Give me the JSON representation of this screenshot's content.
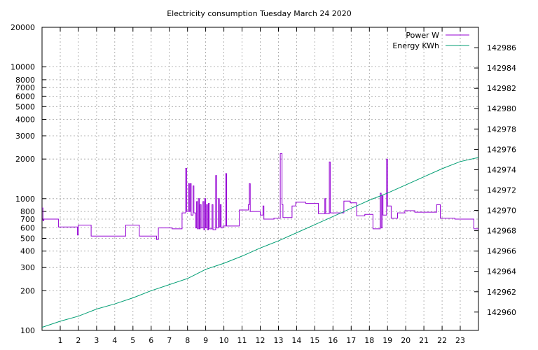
{
  "chart_data": {
    "type": "line",
    "title": "Electricity consumption Tuesday March 24 2020",
    "xlabel": "",
    "ylabel": "",
    "y2label": "",
    "x_range": [
      0,
      24
    ],
    "x_ticks": [
      1,
      2,
      3,
      4,
      5,
      6,
      7,
      8,
      9,
      10,
      11,
      12,
      13,
      14,
      15,
      16,
      17,
      18,
      19,
      20,
      21,
      22,
      23
    ],
    "y_scale": "log",
    "y_range": [
      100,
      20000
    ],
    "y_ticks": [
      100,
      200,
      300,
      400,
      500,
      600,
      700,
      800,
      1000,
      2000,
      3000,
      4000,
      5000,
      6000,
      7000,
      8000,
      10000,
      20000
    ],
    "y2_range": [
      142958.2,
      142988.0
    ],
    "y2_ticks": [
      142960,
      142962,
      142964,
      142966,
      142968,
      142970,
      142972,
      142974,
      142976,
      142978,
      142980,
      142982,
      142984,
      142986
    ],
    "grid": true,
    "legend_position": "top-right",
    "series": [
      {
        "name": "Power W",
        "axis": "left",
        "color": "#9400d3",
        "points": [
          [
            0.0,
            850
          ],
          [
            0.05,
            850
          ],
          [
            0.05,
            680
          ],
          [
            0.1,
            680
          ],
          [
            0.1,
            700
          ],
          [
            0.9,
            700
          ],
          [
            0.9,
            610
          ],
          [
            1.95,
            610
          ],
          [
            1.95,
            530
          ],
          [
            2.0,
            530
          ],
          [
            2.0,
            630
          ],
          [
            2.7,
            630
          ],
          [
            2.7,
            520
          ],
          [
            4.6,
            520
          ],
          [
            4.6,
            630
          ],
          [
            5.35,
            630
          ],
          [
            5.35,
            520
          ],
          [
            6.3,
            520
          ],
          [
            6.3,
            490
          ],
          [
            6.4,
            490
          ],
          [
            6.4,
            600
          ],
          [
            7.15,
            600
          ],
          [
            7.15,
            590
          ],
          [
            7.7,
            590
          ],
          [
            7.7,
            780
          ],
          [
            7.9,
            780
          ],
          [
            7.9,
            1700
          ],
          [
            7.95,
            1700
          ],
          [
            7.95,
            800
          ],
          [
            8.05,
            800
          ],
          [
            8.05,
            1300
          ],
          [
            8.1,
            1300
          ],
          [
            8.1,
            800
          ],
          [
            8.15,
            800
          ],
          [
            8.15,
            1300
          ],
          [
            8.2,
            1300
          ],
          [
            8.2,
            750
          ],
          [
            8.3,
            750
          ],
          [
            8.3,
            1250
          ],
          [
            8.35,
            1250
          ],
          [
            8.35,
            780
          ],
          [
            8.45,
            780
          ],
          [
            8.45,
            600
          ],
          [
            8.5,
            600
          ],
          [
            8.5,
            950
          ],
          [
            8.55,
            950
          ],
          [
            8.55,
            590
          ],
          [
            8.6,
            590
          ],
          [
            8.6,
            1000
          ],
          [
            8.65,
            1000
          ],
          [
            8.65,
            590
          ],
          [
            8.7,
            590
          ],
          [
            8.7,
            900
          ],
          [
            8.75,
            900
          ],
          [
            8.75,
            600
          ],
          [
            8.85,
            600
          ],
          [
            8.85,
            950
          ],
          [
            8.9,
            950
          ],
          [
            8.9,
            580
          ],
          [
            8.95,
            580
          ],
          [
            8.95,
            1000
          ],
          [
            9.0,
            1000
          ],
          [
            9.0,
            600
          ],
          [
            9.05,
            600
          ],
          [
            9.05,
            900
          ],
          [
            9.1,
            900
          ],
          [
            9.1,
            580
          ],
          [
            9.15,
            580
          ],
          [
            9.15,
            920
          ],
          [
            9.2,
            920
          ],
          [
            9.2,
            590
          ],
          [
            9.35,
            590
          ],
          [
            9.35,
            900
          ],
          [
            9.4,
            900
          ],
          [
            9.4,
            580
          ],
          [
            9.55,
            580
          ],
          [
            9.55,
            1500
          ],
          [
            9.6,
            1500
          ],
          [
            9.6,
            600
          ],
          [
            9.7,
            600
          ],
          [
            9.7,
            1000
          ],
          [
            9.75,
            1000
          ],
          [
            9.75,
            610
          ],
          [
            9.8,
            610
          ],
          [
            9.8,
            900
          ],
          [
            9.85,
            900
          ],
          [
            9.85,
            600
          ],
          [
            9.95,
            600
          ],
          [
            9.95,
            620
          ],
          [
            10.1,
            620
          ],
          [
            10.1,
            1550
          ],
          [
            10.15,
            1550
          ],
          [
            10.15,
            620
          ],
          [
            10.85,
            620
          ],
          [
            10.85,
            820
          ],
          [
            11.35,
            820
          ],
          [
            11.35,
            900
          ],
          [
            11.4,
            900
          ],
          [
            11.4,
            1300
          ],
          [
            11.45,
            1300
          ],
          [
            11.45,
            800
          ],
          [
            12.0,
            800
          ],
          [
            12.0,
            750
          ],
          [
            12.15,
            750
          ],
          [
            12.15,
            880
          ],
          [
            12.2,
            880
          ],
          [
            12.2,
            700
          ],
          [
            12.75,
            700
          ],
          [
            12.75,
            710
          ],
          [
            13.1,
            710
          ],
          [
            13.1,
            2200
          ],
          [
            13.2,
            2200
          ],
          [
            13.2,
            900
          ],
          [
            13.25,
            900
          ],
          [
            13.25,
            720
          ],
          [
            13.75,
            720
          ],
          [
            13.75,
            880
          ],
          [
            13.95,
            880
          ],
          [
            13.95,
            940
          ],
          [
            14.5,
            940
          ],
          [
            14.5,
            920
          ],
          [
            15.2,
            920
          ],
          [
            15.2,
            770
          ],
          [
            15.55,
            770
          ],
          [
            15.55,
            1000
          ],
          [
            15.6,
            1000
          ],
          [
            15.6,
            770
          ],
          [
            15.8,
            770
          ],
          [
            15.8,
            1900
          ],
          [
            15.85,
            1900
          ],
          [
            15.85,
            780
          ],
          [
            16.6,
            780
          ],
          [
            16.6,
            960
          ],
          [
            16.95,
            960
          ],
          [
            16.95,
            930
          ],
          [
            17.3,
            930
          ],
          [
            17.3,
            740
          ],
          [
            17.75,
            740
          ],
          [
            17.75,
            760
          ],
          [
            18.2,
            760
          ],
          [
            18.2,
            590
          ],
          [
            18.6,
            590
          ],
          [
            18.6,
            1100
          ],
          [
            18.65,
            1100
          ],
          [
            18.65,
            600
          ],
          [
            18.7,
            600
          ],
          [
            18.7,
            1050
          ],
          [
            18.75,
            1050
          ],
          [
            18.75,
            750
          ],
          [
            18.95,
            750
          ],
          [
            18.95,
            2000
          ],
          [
            19.0,
            2000
          ],
          [
            19.0,
            880
          ],
          [
            19.2,
            880
          ],
          [
            19.2,
            710
          ],
          [
            19.55,
            710
          ],
          [
            19.55,
            780
          ],
          [
            19.95,
            780
          ],
          [
            19.95,
            810
          ],
          [
            20.5,
            810
          ],
          [
            20.5,
            790
          ],
          [
            21.7,
            790
          ],
          [
            21.7,
            900
          ],
          [
            21.9,
            900
          ],
          [
            21.9,
            710
          ],
          [
            22.7,
            710
          ],
          [
            22.7,
            700
          ],
          [
            23.75,
            700
          ],
          [
            23.75,
            590
          ],
          [
            24.0,
            590
          ]
        ]
      },
      {
        "name": "Energy KWh",
        "axis": "right",
        "color": "#009e73",
        "points": [
          [
            0.0,
            142958.5
          ],
          [
            1.0,
            142959.1
          ],
          [
            2.0,
            142959.6
          ],
          [
            3.0,
            142960.3
          ],
          [
            4.0,
            142960.8
          ],
          [
            5.0,
            142961.4
          ],
          [
            6.0,
            142962.1
          ],
          [
            7.0,
            142962.7
          ],
          [
            8.0,
            142963.3
          ],
          [
            9.0,
            142964.2
          ],
          [
            10.0,
            142964.8
          ],
          [
            11.0,
            142965.5
          ],
          [
            12.0,
            142966.3
          ],
          [
            13.0,
            142967.0
          ],
          [
            14.0,
            142967.8
          ],
          [
            15.0,
            142968.6
          ],
          [
            16.0,
            142969.4
          ],
          [
            17.0,
            142970.2
          ],
          [
            18.0,
            142971.0
          ],
          [
            19.0,
            142971.7
          ],
          [
            20.0,
            142972.5
          ],
          [
            21.0,
            142973.3
          ],
          [
            22.0,
            142974.1
          ],
          [
            23.0,
            142974.8
          ],
          [
            24.0,
            142975.2
          ]
        ]
      }
    ]
  }
}
